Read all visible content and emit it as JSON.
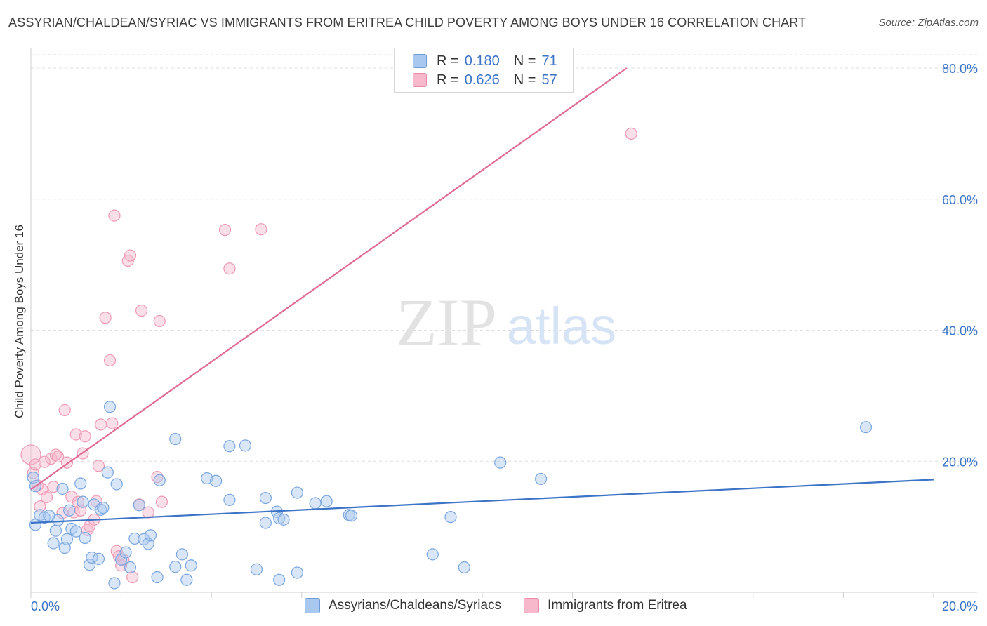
{
  "header": {
    "title": "ASSYRIAN/CHALDEAN/SYRIAC VS IMMIGRANTS FROM ERITREA CHILD POVERTY AMONG BOYS UNDER 16 CORRELATION CHART",
    "source": "Source: ZipAtlas.com"
  },
  "watermark": {
    "zip": "ZIP",
    "atlas": "atlas"
  },
  "legend": {
    "rows": [
      {
        "r_label": "R =",
        "r_value": "0.180",
        "n_label": "N =",
        "n_value": "71",
        "color": "#a9c8f0"
      },
      {
        "r_label": "R =",
        "r_value": "0.626",
        "n_label": "N =",
        "n_value": "57",
        "color": "#f7b8cb"
      }
    ]
  },
  "bottom_legend": {
    "items": [
      {
        "label": "Assyrians/Chaldeans/Syriacs",
        "color": "#a9c8f0"
      },
      {
        "label": "Immigrants from Eritrea",
        "color": "#f7b8cb"
      }
    ]
  },
  "chart_data": {
    "type": "scatter",
    "title": "ASSYRIAN/CHALDEAN/SYRIAC VS IMMIGRANTS FROM ERITREA CHILD POVERTY AMONG BOYS UNDER 16 CORRELATION CHART",
    "xlabel": "",
    "ylabel": "Child Poverty Among Boys Under 16",
    "xlim": [
      0,
      20
    ],
    "ylim": [
      0,
      83
    ],
    "x_tick_labels": [
      "0.0%",
      "20.0%"
    ],
    "y_ticks": [
      20,
      40,
      60,
      80
    ],
    "y_tick_labels": [
      "20.0%",
      "40.0%",
      "60.0%",
      "80.0%"
    ],
    "grid": true,
    "legend_position": "top-center",
    "series": [
      {
        "name": "Assyrians/Chaldeans/Syriacs",
        "color": "#3b73c7",
        "fill": "#a9c8f0",
        "trend": {
          "x0": 0,
          "y0": 10.6,
          "x1": 20,
          "y1": 17.2
        },
        "points": [
          [
            0.05,
            17.5
          ],
          [
            0.1,
            16.2
          ],
          [
            0.1,
            10.3
          ],
          [
            0.2,
            11.8
          ],
          [
            0.3,
            11.4
          ],
          [
            0.4,
            11.7
          ],
          [
            0.5,
            7.5
          ],
          [
            0.55,
            9.4
          ],
          [
            0.6,
            11.0
          ],
          [
            0.7,
            15.8
          ],
          [
            0.75,
            6.8
          ],
          [
            0.8,
            8.1
          ],
          [
            0.85,
            12.5
          ],
          [
            0.9,
            9.7
          ],
          [
            1.0,
            9.3
          ],
          [
            1.1,
            16.6
          ],
          [
            1.15,
            13.8
          ],
          [
            1.2,
            8.3
          ],
          [
            1.3,
            4.2
          ],
          [
            1.35,
            5.3
          ],
          [
            1.4,
            13.4
          ],
          [
            1.5,
            5.1
          ],
          [
            1.55,
            12.6
          ],
          [
            1.6,
            12.9
          ],
          [
            1.7,
            18.3
          ],
          [
            1.75,
            28.3
          ],
          [
            1.85,
            1.4
          ],
          [
            1.9,
            16.5
          ],
          [
            2.0,
            5.0
          ],
          [
            2.1,
            6.1
          ],
          [
            2.2,
            3.8
          ],
          [
            2.3,
            8.2
          ],
          [
            2.4,
            13.3
          ],
          [
            2.5,
            8.1
          ],
          [
            2.6,
            7.4
          ],
          [
            2.65,
            8.7
          ],
          [
            2.8,
            2.3
          ],
          [
            2.85,
            17.1
          ],
          [
            3.2,
            23.4
          ],
          [
            3.2,
            3.9
          ],
          [
            3.35,
            5.8
          ],
          [
            3.45,
            1.9
          ],
          [
            3.55,
            4.1
          ],
          [
            3.9,
            17.4
          ],
          [
            4.1,
            17.0
          ],
          [
            4.4,
            22.3
          ],
          [
            4.4,
            14.1
          ],
          [
            4.75,
            22.4
          ],
          [
            5.0,
            3.5
          ],
          [
            5.2,
            14.4
          ],
          [
            5.2,
            10.6
          ],
          [
            5.45,
            12.3
          ],
          [
            5.5,
            11.3
          ],
          [
            5.6,
            11.1
          ],
          [
            5.5,
            1.9
          ],
          [
            5.9,
            3.0
          ],
          [
            5.9,
            15.2
          ],
          [
            6.3,
            13.6
          ],
          [
            6.55,
            13.9
          ],
          [
            7.05,
            11.8
          ],
          [
            7.1,
            11.7
          ],
          [
            8.9,
            5.8
          ],
          [
            9.3,
            11.5
          ],
          [
            9.6,
            3.8
          ],
          [
            10.4,
            19.8
          ],
          [
            11.3,
            17.3
          ],
          [
            18.5,
            25.2
          ]
        ]
      },
      {
        "name": "Immigrants from Eritrea",
        "color": "#e06a92",
        "fill": "#f7b8cb",
        "trend": {
          "x0": 0,
          "y0": 15.7,
          "x1": 13.2,
          "y1": 80.0
        },
        "points": [
          [
            0.0,
            21.0
          ],
          [
            0.05,
            18.2
          ],
          [
            0.1,
            19.5
          ],
          [
            0.15,
            16.3
          ],
          [
            0.2,
            13.1
          ],
          [
            0.25,
            15.7
          ],
          [
            0.3,
            19.9
          ],
          [
            0.35,
            14.5
          ],
          [
            0.45,
            20.4
          ],
          [
            0.5,
            16.1
          ],
          [
            0.55,
            21.0
          ],
          [
            0.6,
            20.7
          ],
          [
            0.7,
            12.1
          ],
          [
            0.75,
            27.8
          ],
          [
            0.8,
            19.8
          ],
          [
            0.9,
            14.6
          ],
          [
            0.95,
            12.2
          ],
          [
            1.0,
            24.1
          ],
          [
            1.05,
            13.8
          ],
          [
            1.1,
            12.5
          ],
          [
            1.15,
            21.2
          ],
          [
            1.2,
            23.8
          ],
          [
            1.25,
            9.5
          ],
          [
            1.3,
            10.1
          ],
          [
            1.4,
            11.1
          ],
          [
            1.45,
            13.9
          ],
          [
            1.5,
            19.3
          ],
          [
            1.55,
            25.6
          ],
          [
            1.65,
            41.9
          ],
          [
            1.75,
            35.4
          ],
          [
            1.8,
            25.8
          ],
          [
            1.85,
            57.5
          ],
          [
            1.9,
            6.3
          ],
          [
            1.95,
            5.5
          ],
          [
            2.0,
            4.1
          ],
          [
            2.05,
            5.0
          ],
          [
            2.15,
            50.6
          ],
          [
            2.2,
            51.4
          ],
          [
            2.25,
            2.3
          ],
          [
            2.4,
            13.4
          ],
          [
            2.45,
            43.0
          ],
          [
            2.6,
            12.2
          ],
          [
            2.8,
            17.6
          ],
          [
            2.85,
            41.4
          ],
          [
            2.9,
            13.8
          ],
          [
            4.3,
            55.3
          ],
          [
            4.4,
            49.4
          ],
          [
            5.1,
            55.4
          ],
          [
            13.3,
            70.0
          ]
        ]
      }
    ]
  }
}
